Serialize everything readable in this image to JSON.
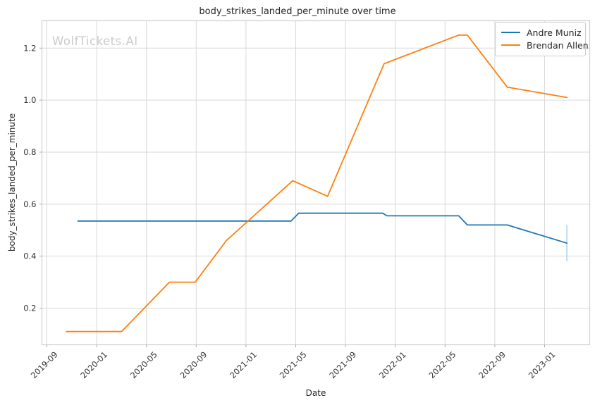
{
  "header": {
    "title": "body_strikes_landed_per_minute over time"
  },
  "watermark": {
    "text": "WolfTickets.AI"
  },
  "axes": {
    "x_label": "Date",
    "y_label": "body_strikes_landed_per_minute",
    "x_ticks": [
      "2019-09",
      "2020-01",
      "2020-05",
      "2020-09",
      "2021-01",
      "2021-05",
      "2021-09",
      "2022-01",
      "2022-05",
      "2022-09",
      "2023-01"
    ],
    "y_ticks": [
      "0.2",
      "0.4",
      "0.6",
      "0.8",
      "1.0",
      "1.2"
    ]
  },
  "legend": {
    "position": "upper right",
    "items": [
      {
        "label": "Andre Muniz",
        "color": "#1f77b4"
      },
      {
        "label": "Brendan Allen",
        "color": "#ff7f0e"
      }
    ]
  },
  "colors": {
    "blue": "#1f77b4",
    "orange": "#ff7f0e",
    "grid": "#d9d9d9",
    "spine": "#cfcfcf",
    "tick_mark": "#aaaaaa",
    "tick_text": "#333333",
    "watermark": "#cbcbcb",
    "confidence_bar": "#aed2e8",
    "background": "#ffffff"
  },
  "chart_data": {
    "type": "line",
    "title": "body_strikes_landed_per_minute over time",
    "xlabel": "Date",
    "ylabel": "body_strikes_landed_per_minute",
    "grid": true,
    "legend_position": "upper right",
    "x_tick_labels": [
      "2019-09",
      "2020-01",
      "2020-05",
      "2020-09",
      "2021-01",
      "2021-05",
      "2021-09",
      "2022-01",
      "2022-05",
      "2022-09",
      "2023-01"
    ],
    "y_tick_values": [
      0.2,
      0.4,
      0.6,
      0.8,
      1.0,
      1.2
    ],
    "ylim": [
      0.06,
      1.3
    ],
    "xlim": [
      "2019-08-25",
      "2023-04-05"
    ],
    "series": [
      {
        "name": "Andre Muniz",
        "color": "#1f77b4",
        "points": [
          [
            "2019-11-16",
            0.535
          ],
          [
            "2021-04-20",
            0.535
          ],
          [
            "2021-05-08",
            0.565
          ],
          [
            "2021-12-01",
            0.565
          ],
          [
            "2021-12-11",
            0.555
          ],
          [
            "2022-06-04",
            0.555
          ],
          [
            "2022-06-25",
            0.52
          ],
          [
            "2022-10-01",
            0.52
          ],
          [
            "2023-02-25",
            0.45
          ]
        ],
        "final_point_interval": {
          "date": "2023-02-25",
          "low": 0.38,
          "high": 0.52
        }
      },
      {
        "name": "Brendan Allen",
        "color": "#ff7f0e",
        "points": [
          [
            "2019-10-18",
            0.11
          ],
          [
            "2020-03-01",
            0.11
          ],
          [
            "2020-06-27",
            0.3
          ],
          [
            "2020-08-29",
            0.3
          ],
          [
            "2020-11-14",
            0.46
          ],
          [
            "2021-04-24",
            0.69
          ],
          [
            "2021-07-18",
            0.63
          ],
          [
            "2021-12-04",
            1.14
          ],
          [
            "2022-06-04",
            1.25
          ],
          [
            "2022-06-25",
            1.25
          ],
          [
            "2022-10-01",
            1.05
          ],
          [
            "2023-02-25",
            1.01
          ]
        ]
      }
    ]
  }
}
